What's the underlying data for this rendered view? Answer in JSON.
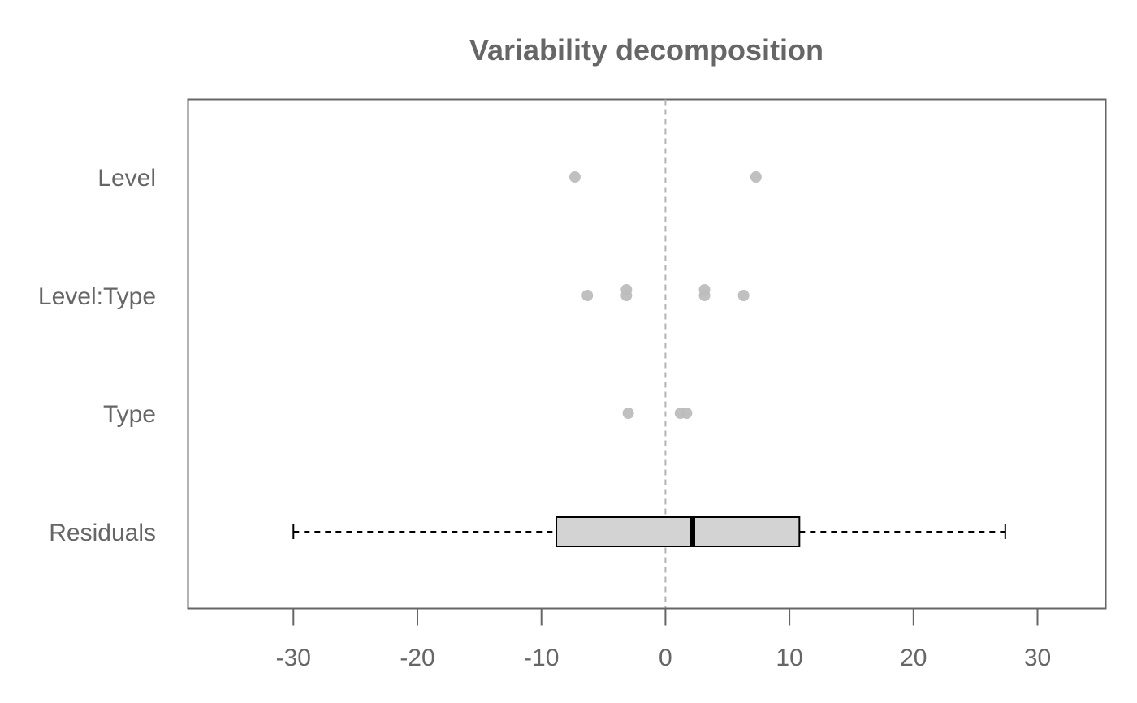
{
  "chart_data": {
    "type": "boxplot",
    "title": "Variability decomposition",
    "xlabel": "",
    "ylabel": "",
    "xlim": [
      -38.5,
      35.5
    ],
    "xticks": [
      -30,
      -20,
      -10,
      0,
      10,
      20,
      30
    ],
    "xtick_labels": [
      "-30",
      "-20",
      "-10",
      "0",
      "10",
      "20",
      "30"
    ],
    "reference_line": {
      "x": 0,
      "style": "dashed"
    },
    "grid": false,
    "legend": "none",
    "categories": [
      "Level",
      "Level:Type",
      "Type",
      "Residuals"
    ],
    "points": [
      {
        "category": "Level",
        "values": [
          -7.3,
          7.3
        ]
      },
      {
        "category": "Level:Type",
        "values": [
          -6.3,
          -3.15,
          -3.15,
          3.15,
          3.15,
          6.3
        ]
      },
      {
        "category": "Type",
        "values": [
          -3.0,
          1.2,
          1.7
        ]
      }
    ],
    "box": {
      "category": "Residuals",
      "whisker_low": -30.0,
      "q1": -8.8,
      "median": 2.2,
      "q3": 10.8,
      "whisker_high": 27.4
    },
    "colors": {
      "points": "#bdbdbd",
      "box_fill": "#d3d3d3",
      "box_stroke": "#000000",
      "frame": "#666666",
      "text": "#666666",
      "reference_line": "#b3b3b3"
    }
  }
}
